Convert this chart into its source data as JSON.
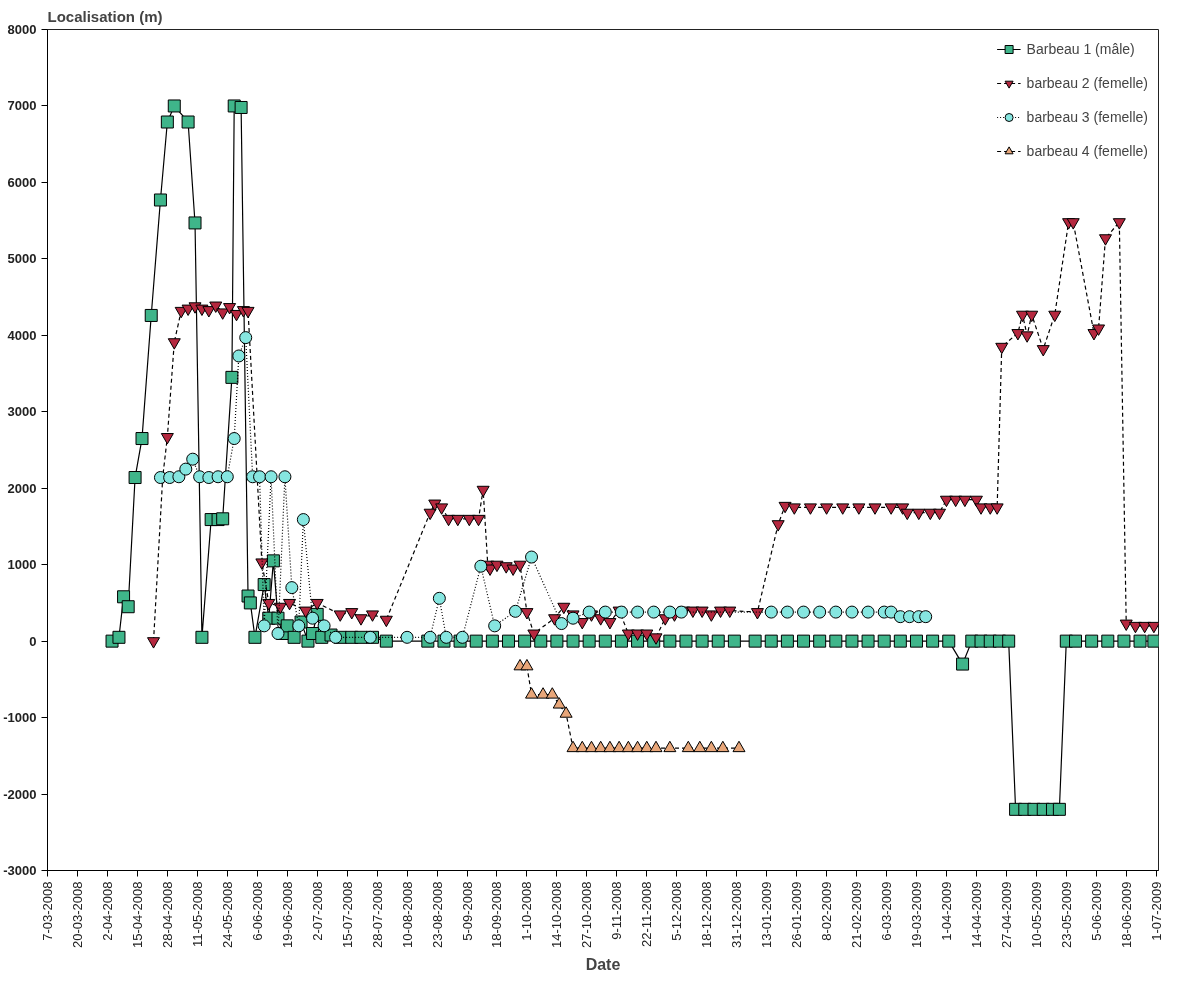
{
  "chart_data": {
    "type": "line",
    "ylabel": "Localisation (m)",
    "xlabel": "Date",
    "ylim": [
      -3000,
      8000
    ],
    "yticks": [
      -3000,
      -2000,
      -1000,
      0,
      1000,
      2000,
      3000,
      4000,
      5000,
      6000,
      7000,
      8000
    ],
    "xlim": [
      "2008-03-07",
      "2009-07-02"
    ],
    "xticks": [
      {
        "value": "2008-03-07",
        "label": "7-03-2008"
      },
      {
        "value": "2008-03-20",
        "label": "20-03-2008"
      },
      {
        "value": "2008-04-02",
        "label": "2-04-2008"
      },
      {
        "value": "2008-04-15",
        "label": "15-04-2008"
      },
      {
        "value": "2008-04-28",
        "label": "28-04-2008"
      },
      {
        "value": "2008-05-11",
        "label": "11-05-2008"
      },
      {
        "value": "2008-05-24",
        "label": "24-05-2008"
      },
      {
        "value": "2008-06-06",
        "label": "6-06-2008"
      },
      {
        "value": "2008-06-19",
        "label": "19-06-2008"
      },
      {
        "value": "2008-07-02",
        "label": "2-07-2008"
      },
      {
        "value": "2008-07-15",
        "label": "15-07-2008"
      },
      {
        "value": "2008-07-28",
        "label": "28-07-2008"
      },
      {
        "value": "2008-08-10",
        "label": "10-08-2008"
      },
      {
        "value": "2008-08-23",
        "label": "23-08-2008"
      },
      {
        "value": "2008-09-05",
        "label": "5-09-2008"
      },
      {
        "value": "2008-09-18",
        "label": "18-09-2008"
      },
      {
        "value": "2008-10-01",
        "label": "1-10-2008"
      },
      {
        "value": "2008-10-14",
        "label": "14-10-2008"
      },
      {
        "value": "2008-10-27",
        "label": "27-10-2008"
      },
      {
        "value": "2008-11-09",
        "label": "9-11-2008"
      },
      {
        "value": "2008-11-22",
        "label": "22-11-2008"
      },
      {
        "value": "2008-12-05",
        "label": "5-12-2008"
      },
      {
        "value": "2008-12-18",
        "label": "18-12-2008"
      },
      {
        "value": "2008-12-31",
        "label": "31-12-2008"
      },
      {
        "value": "2009-01-13",
        "label": "13-01-2009"
      },
      {
        "value": "2009-01-26",
        "label": "26-01-2009"
      },
      {
        "value": "2009-02-08",
        "label": "8-02-2009"
      },
      {
        "value": "2009-02-21",
        "label": "21-02-2009"
      },
      {
        "value": "2009-03-06",
        "label": "6-03-2009"
      },
      {
        "value": "2009-03-19",
        "label": "19-03-2009"
      },
      {
        "value": "2009-04-01",
        "label": "1-04-2009"
      },
      {
        "value": "2009-04-14",
        "label": "14-04-2009"
      },
      {
        "value": "2009-04-27",
        "label": "27-04-2009"
      },
      {
        "value": "2009-05-10",
        "label": "10-05-2009"
      },
      {
        "value": "2009-05-23",
        "label": "23-05-2009"
      },
      {
        "value": "2009-06-05",
        "label": "5-06-2009"
      },
      {
        "value": "2009-06-18",
        "label": "18-06-2009"
      },
      {
        "value": "2009-07-01",
        "label": "1-07-2009"
      }
    ],
    "grid": false,
    "legend": "top right",
    "series": [
      {
        "name": "Barbeau 1 (mâle)",
        "color": "#3fb58a",
        "marker": "square",
        "line_style": "solid",
        "x": [
          "2008-04-04",
          "2008-04-07",
          "2008-04-09",
          "2008-04-11",
          "2008-04-14",
          "2008-04-17",
          "2008-04-21",
          "2008-04-25",
          "2008-04-28",
          "2008-05-01",
          "2008-05-07",
          "2008-05-10",
          "2008-05-13",
          "2008-05-17",
          "2008-05-20",
          "2008-05-22",
          "2008-05-26",
          "2008-05-27",
          "2008-05-30",
          "2008-06-02",
          "2008-06-03",
          "2008-06-05",
          "2008-06-09",
          "2008-06-11",
          "2008-06-13",
          "2008-06-15",
          "2008-06-17",
          "2008-06-19",
          "2008-06-22",
          "2008-06-25",
          "2008-06-28",
          "2008-06-30",
          "2008-07-02",
          "2008-07-04",
          "2008-07-08",
          "2008-07-12",
          "2008-07-17",
          "2008-07-21",
          "2008-07-26",
          "2008-08-01",
          "2008-08-19",
          "2008-08-26",
          "2008-09-02",
          "2008-09-09",
          "2008-09-16",
          "2008-09-23",
          "2008-09-30",
          "2008-10-07",
          "2008-10-14",
          "2008-10-21",
          "2008-10-28",
          "2008-11-04",
          "2008-11-11",
          "2008-11-18",
          "2008-11-25",
          "2008-12-02",
          "2008-12-09",
          "2008-12-16",
          "2008-12-23",
          "2008-12-30",
          "2009-01-08",
          "2009-01-15",
          "2009-01-22",
          "2009-01-29",
          "2009-02-05",
          "2009-02-12",
          "2009-02-19",
          "2009-02-26",
          "2009-03-05",
          "2009-03-12",
          "2009-03-19",
          "2009-03-26",
          "2009-04-02",
          "2009-04-08",
          "2009-04-12",
          "2009-04-16",
          "2009-04-20",
          "2009-04-24",
          "2009-04-28",
          "2009-05-01",
          "2009-05-05",
          "2009-05-09",
          "2009-05-13",
          "2009-05-17",
          "2009-05-20",
          "2009-05-23",
          "2009-05-27",
          "2009-06-03",
          "2009-06-10",
          "2009-06-17",
          "2009-06-24",
          "2009-06-30"
        ],
        "values": [
          0,
          50,
          580,
          450,
          2140,
          2650,
          4260,
          5770,
          6790,
          7000,
          6790,
          5470,
          50,
          1590,
          1590,
          1600,
          3450,
          7000,
          6980,
          590,
          500,
          50,
          740,
          300,
          1050,
          300,
          100,
          200,
          50,
          250,
          0,
          100,
          350,
          50,
          80,
          50,
          50,
          50,
          50,
          0,
          0,
          0,
          0,
          0,
          0,
          0,
          0,
          0,
          0,
          0,
          0,
          0,
          0,
          0,
          0,
          0,
          0,
          0,
          0,
          0,
          0,
          0,
          0,
          0,
          0,
          0,
          0,
          0,
          0,
          0,
          0,
          0,
          0,
          -300,
          0,
          0,
          0,
          0,
          0,
          -2200,
          -2200,
          -2200,
          -2200,
          -2200,
          -2200,
          0,
          0,
          0,
          0,
          0,
          0,
          0
        ]
      },
      {
        "name": "barbeau 2 (femelle)",
        "color": "#b5283f",
        "marker": "triangle_down",
        "line_style": "dashed",
        "x": [
          "2008-04-22",
          "2008-04-26",
          "2008-04-28",
          "2008-05-01",
          "2008-05-04",
          "2008-05-07",
          "2008-05-10",
          "2008-05-13",
          "2008-05-16",
          "2008-05-19",
          "2008-05-22",
          "2008-05-25",
          "2008-05-28",
          "2008-05-31",
          "2008-06-02",
          "2008-06-08",
          "2008-06-11",
          "2008-06-16",
          "2008-06-20",
          "2008-06-27",
          "2008-07-02",
          "2008-07-12",
          "2008-07-17",
          "2008-07-21",
          "2008-07-26",
          "2008-08-01",
          "2008-08-20",
          "2008-08-22",
          "2008-08-25",
          "2008-08-28",
          "2008-09-01",
          "2008-09-06",
          "2008-09-10",
          "2008-09-12",
          "2008-09-14",
          "2008-09-15",
          "2008-09-18",
          "2008-09-22",
          "2008-09-25",
          "2008-09-28",
          "2008-10-01",
          "2008-10-04",
          "2008-10-13",
          "2008-10-17",
          "2008-10-21",
          "2008-10-25",
          "2008-10-29",
          "2008-11-02",
          "2008-11-06",
          "2008-11-10",
          "2008-11-14",
          "2008-11-18",
          "2008-11-22",
          "2008-11-26",
          "2008-11-30",
          "2008-12-04",
          "2008-12-08",
          "2008-12-12",
          "2008-12-16",
          "2008-12-20",
          "2008-12-24",
          "2008-12-28",
          "2009-01-09",
          "2009-01-18",
          "2009-01-21",
          "2009-01-25",
          "2009-02-01",
          "2009-02-08",
          "2009-02-15",
          "2009-02-22",
          "2009-03-01",
          "2009-03-08",
          "2009-03-13",
          "2009-03-15",
          "2009-03-20",
          "2009-03-25",
          "2009-03-29",
          "2009-04-01",
          "2009-04-05",
          "2009-04-09",
          "2009-04-14",
          "2009-04-16",
          "2009-04-20",
          "2009-04-23",
          "2009-04-25",
          "2009-05-02",
          "2009-05-04",
          "2009-05-06",
          "2009-05-08",
          "2009-05-13",
          "2009-05-18",
          "2009-05-24",
          "2009-05-26",
          "2009-06-04",
          "2009-06-06",
          "2009-06-09",
          "2009-06-15",
          "2009-06-18",
          "2009-06-22",
          "2009-06-26",
          "2009-06-30"
        ],
        "values": [
          0,
          2150,
          2670,
          3910,
          4320,
          4350,
          4380,
          4350,
          4330,
          4390,
          4300,
          4370,
          4280,
          4330,
          4320,
          1030,
          500,
          450,
          500,
          400,
          500,
          350,
          380,
          300,
          350,
          280,
          1680,
          1800,
          1750,
          1600,
          1600,
          1600,
          1600,
          1980,
          1000,
          950,
          1000,
          980,
          950,
          1000,
          380,
          100,
          300,
          450,
          350,
          250,
          350,
          300,
          250,
          400,
          100,
          100,
          100,
          50,
          300,
          350,
          400,
          400,
          400,
          350,
          400,
          400,
          380,
          1530,
          1770,
          1750,
          1750,
          1750,
          1750,
          1750,
          1750,
          1750,
          1750,
          1680,
          1680,
          1680,
          1680,
          1850,
          1850,
          1850,
          1850,
          1750,
          1750,
          1750,
          3850,
          4030,
          4270,
          4000,
          4270,
          3820,
          4270,
          5480,
          5480,
          4030,
          4090,
          5270,
          5480,
          230,
          200,
          200,
          200
        ]
      },
      {
        "name": "barbeau 3 (femelle)",
        "color": "#86e6e0",
        "marker": "circle",
        "line_style": "dotted",
        "x": [
          "2008-04-25",
          "2008-04-29",
          "2008-05-03",
          "2008-05-06",
          "2008-05-09",
          "2008-05-12",
          "2008-05-16",
          "2008-05-20",
          "2008-05-24",
          "2008-05-27",
          "2008-05-29",
          "2008-06-01",
          "2008-06-04",
          "2008-06-07",
          "2008-06-09",
          "2008-06-12",
          "2008-06-15",
          "2008-06-18",
          "2008-06-21",
          "2008-06-24",
          "2008-06-26",
          "2008-06-30",
          "2008-07-05",
          "2008-07-10",
          "2008-07-25",
          "2008-08-10",
          "2008-08-20",
          "2008-08-24",
          "2008-08-27",
          "2008-09-03",
          "2008-09-11",
          "2008-09-17",
          "2008-09-26",
          "2008-10-03",
          "2008-10-16",
          "2008-10-21",
          "2008-10-28",
          "2008-11-04",
          "2008-11-11",
          "2008-11-18",
          "2008-11-25",
          "2008-12-02",
          "2008-12-07",
          "2009-01-15",
          "2009-01-22",
          "2009-01-29",
          "2009-02-05",
          "2009-02-12",
          "2009-02-19",
          "2009-02-26",
          "2009-03-05",
          "2009-03-08",
          "2009-03-12",
          "2009-03-16",
          "2009-03-20",
          "2009-03-23"
        ],
        "values": [
          2140,
          2140,
          2150,
          2250,
          2380,
          2150,
          2140,
          2150,
          2150,
          2650,
          3730,
          3970,
          2150,
          2150,
          200,
          2150,
          100,
          2150,
          700,
          200,
          1590,
          300,
          200,
          50,
          50,
          50,
          50,
          560,
          50,
          50,
          980,
          200,
          390,
          1100,
          230,
          300,
          380,
          380,
          380,
          380,
          380,
          380,
          380,
          380,
          380,
          380,
          380,
          380,
          380,
          380,
          380,
          380,
          320,
          320,
          320,
          320
        ]
      },
      {
        "name": "barbeau 4 (femelle)",
        "color": "#e8a679",
        "marker": "triangle",
        "line_style": "dashed",
        "x": [
          "2008-09-28",
          "2008-10-01",
          "2008-10-03",
          "2008-10-08",
          "2008-10-12",
          "2008-10-15",
          "2008-10-18",
          "2008-10-21",
          "2008-10-25",
          "2008-10-29",
          "2008-11-02",
          "2008-11-06",
          "2008-11-10",
          "2008-11-14",
          "2008-11-18",
          "2008-11-22",
          "2008-11-26",
          "2008-12-02",
          "2008-12-10",
          "2008-12-15",
          "2008-12-20",
          "2008-12-25",
          "2009-01-01"
        ],
        "values": [
          -330,
          -330,
          -700,
          -700,
          -700,
          -830,
          -950,
          -1400,
          -1400,
          -1400,
          -1400,
          -1400,
          -1400,
          -1400,
          -1400,
          -1400,
          -1400,
          -1400,
          -1400,
          -1400,
          -1400,
          -1400,
          -1400
        ]
      }
    ]
  }
}
